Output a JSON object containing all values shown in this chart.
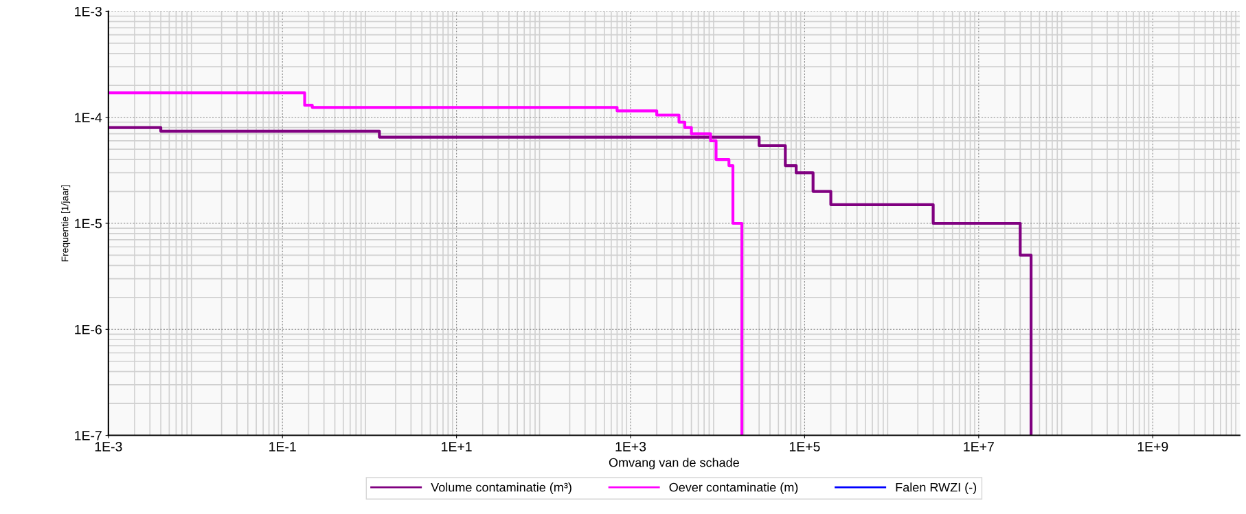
{
  "chart_data": {
    "type": "step",
    "xlabel": "Omvang van de schade",
    "ylabel": "Frequentie [1/jaar]",
    "log": "xy",
    "grid": true,
    "legend": "bottom",
    "line_style": "solid",
    "marker": "none",
    "xlim": [
      0.001,
      10000000000
    ],
    "xticks": [
      {
        "value": 0.001,
        "label": "1E-3"
      },
      {
        "value": 0.1,
        "label": "1E-1"
      },
      {
        "value": 10,
        "label": "1E+1"
      },
      {
        "value": 1000,
        "label": "1E+3"
      },
      {
        "value": 100000,
        "label": "1E+5"
      },
      {
        "value": 10000000,
        "label": "1E+7"
      },
      {
        "value": 1000000000,
        "label": "1E+9"
      }
    ],
    "ylim": [
      1e-07,
      0.001
    ],
    "yticks": [
      {
        "value": 1e-07,
        "label": "1E-7"
      },
      {
        "value": 1e-06,
        "label": "1E-6"
      },
      {
        "value": 1e-05,
        "label": "1E-5"
      },
      {
        "value": 0.0001,
        "label": "1E-4"
      },
      {
        "value": 0.001,
        "label": "1E-3"
      }
    ],
    "series": [
      {
        "name": "Volume contaminatie (m³)",
        "color": "#800080",
        "x": [
          0.001,
          0.004,
          1.3,
          30000,
          60000,
          80000,
          125000,
          200000,
          3000000,
          30000000,
          40000000
        ],
        "values": [
          8e-05,
          7.4e-05,
          6.5e-05,
          5.4e-05,
          3.5e-05,
          3e-05,
          2e-05,
          1.5e-05,
          1e-05,
          5e-06,
          1e-07
        ]
      },
      {
        "name": "Oever contaminatie (m)",
        "color": "#ff00ff",
        "x": [
          0.001,
          0.18,
          0.22,
          700,
          2000,
          3600,
          4200,
          5000,
          8300,
          9600,
          13500,
          15000,
          19000
        ],
        "values": [
          0.00017,
          0.00013,
          0.000124,
          0.000115,
          0.000105,
          9e-05,
          8e-05,
          7e-05,
          6e-05,
          4e-05,
          3.5e-05,
          1e-05,
          1e-07
        ]
      },
      {
        "name": "Falen RWZI (-)",
        "color": "#0000ff"
      }
    ]
  }
}
